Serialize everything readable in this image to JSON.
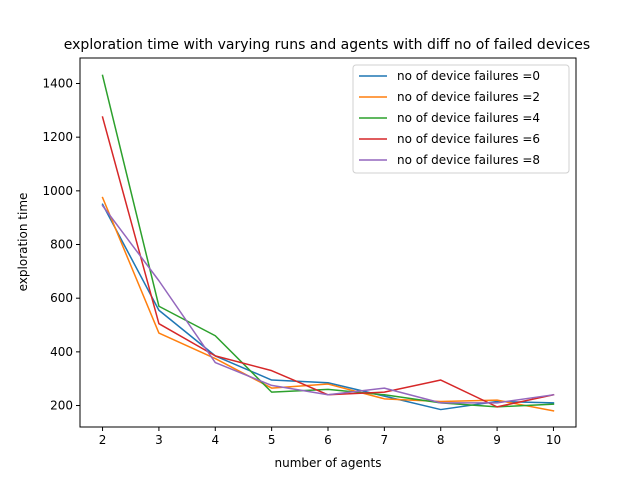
{
  "chart_data": {
    "type": "line",
    "title": "exploration time with varying runs and agents with diff no of failed devices",
    "xlabel": "number of agents",
    "ylabel": "exploration time",
    "x": [
      2,
      3,
      4,
      5,
      6,
      7,
      8,
      9,
      10
    ],
    "xlim": [
      1.6,
      10.4
    ],
    "ylim": [
      120,
      1495
    ],
    "xticks": [
      2,
      3,
      4,
      5,
      6,
      7,
      8,
      9,
      10
    ],
    "yticks": [
      200,
      400,
      600,
      800,
      1000,
      1200,
      1400
    ],
    "grid": false,
    "legend_position": "top-right",
    "series": [
      {
        "name": "no of device failures =0",
        "color": "#1f77b4",
        "values": [
          950,
          555,
          385,
          295,
          285,
          235,
          185,
          215,
          210
        ]
      },
      {
        "name": "no of device failures =2",
        "color": "#ff7f0e",
        "values": [
          975,
          470,
          375,
          265,
          280,
          225,
          215,
          220,
          180
        ]
      },
      {
        "name": "no of device failures =4",
        "color": "#2ca02c",
        "values": [
          1430,
          570,
          460,
          250,
          260,
          240,
          210,
          195,
          205
        ]
      },
      {
        "name": "no of device failures =6",
        "color": "#d62728",
        "values": [
          1275,
          505,
          385,
          330,
          240,
          250,
          295,
          195,
          240
        ]
      },
      {
        "name": "no of device failures =8",
        "color": "#9467bd",
        "values": [
          945,
          665,
          360,
          275,
          240,
          265,
          210,
          210,
          240
        ]
      }
    ]
  }
}
